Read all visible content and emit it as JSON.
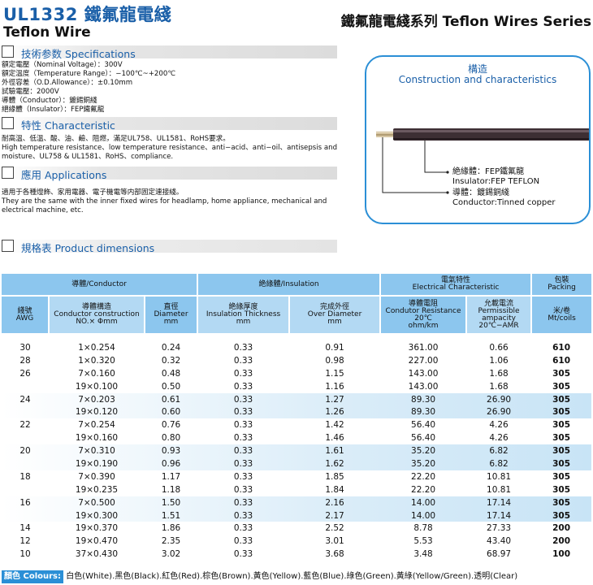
{
  "header": {
    "title_main": "UL1332 鐵氟龍電綫",
    "title_sub": "Teflon Wire",
    "title_right": "鐵氟龍電綫系列 Teflon Wires Series"
  },
  "sections": {
    "specifications": "技術参数 Specifications",
    "characteristic": "特性 Characteristic",
    "applications": "應用 Applications",
    "dimensions": "規格表 Product dimensions"
  },
  "specs": [
    "額定電壓（Nominal Voltage）：300V",
    "額定溫度（Temperature Range）：−100℃~+200℃",
    "外徑容差（O.D.Allowance）：±0.10mm",
    "試驗電壓：2000V",
    "導體（Conductor）：鍍錫銅綫",
    "絕緣體（Insulator）：FEP鐵氟龍"
  ],
  "characteristic_text": {
    "line1": "耐高溫、低溫、酸、油、鹼、阻燃，滿足UL758、UL1581、RoHS要求。",
    "line2": "High temperature resistance、low temperature resistance、anti−acid、anti−oil、antisepsis and moisture、UL758 & UL1581、RoHS、compliance."
  },
  "applications_text": {
    "line1": "適用于各種燈飾、家用電器、電子機電等内部固定連接綫。",
    "line2": "They are the same with the inner fixed wires for headlamp, home appliance, mechanical and electrical machine, etc."
  },
  "diagram": {
    "title_cn": "構造",
    "title_en": "Construction and characteristics",
    "insulator_cn": "絶緣體：FEP鐵氟龍",
    "insulator_en": "Insulator:FEP TEFLON",
    "conductor_cn": "導體：鍍錫銅綫",
    "conductor_en": "Conductor:Tinned copper"
  },
  "table": {
    "group_headers": {
      "conductor": "導體/Conductor",
      "insulation": "絶緣體/Insulation",
      "electrical_cn": "電氣特性",
      "electrical_en": "Electrical Characteristic",
      "packing_cn": "包裝",
      "packing_en": "Packing"
    },
    "col_headers": [
      {
        "cn": "綫號",
        "en": "AWG"
      },
      {
        "cn": "導體構造",
        "en": "Conductor construction",
        "unit": "NO.× Φmm"
      },
      {
        "cn": "直徑",
        "en": "Diameter",
        "unit": "mm"
      },
      {
        "cn": "絶緣厚度",
        "en": "Insulation Thickness",
        "unit": "mm"
      },
      {
        "cn": "完成外徑",
        "en": "Over Diameter",
        "unit": "mm"
      },
      {
        "cn": "導體電阻",
        "en": "Condutor Resistance 20℃",
        "unit": "ohm/km"
      },
      {
        "cn": "允載電流",
        "en": "Permissible ampacity",
        "unit": "20℃−AMR"
      },
      {
        "cn": "米/卷",
        "en": "Mt/coils"
      }
    ],
    "rows": [
      {
        "awg": "30",
        "construction": "1×0.254",
        "diameter": "0.24",
        "thickness": "0.33",
        "over_diameter": "0.91",
        "resistance": "361.00",
        "ampacity": "0.66",
        "packing": "610"
      },
      {
        "awg": "28",
        "construction": "1×0.320",
        "diameter": "0.32",
        "thickness": "0.33",
        "over_diameter": "0.98",
        "resistance": "227.00",
        "ampacity": "1.06",
        "packing": "610"
      },
      {
        "awg": "26",
        "construction": "7×0.160",
        "diameter": "0.48",
        "thickness": "0.33",
        "over_diameter": "1.15",
        "resistance": "143.00",
        "ampacity": "1.68",
        "packing": "305"
      },
      {
        "awg": "",
        "construction": "19×0.100",
        "diameter": "0.50",
        "thickness": "0.33",
        "over_diameter": "1.16",
        "resistance": "143.00",
        "ampacity": "1.68",
        "packing": "305"
      },
      {
        "awg": "24",
        "construction": "7×0.203",
        "diameter": "0.61",
        "thickness": "0.33",
        "over_diameter": "1.27",
        "resistance": "89.30",
        "ampacity": "26.90",
        "packing": "305"
      },
      {
        "awg": "",
        "construction": "19×0.120",
        "diameter": "0.60",
        "thickness": "0.33",
        "over_diameter": "1.26",
        "resistance": "89.30",
        "ampacity": "26.90",
        "packing": "305"
      },
      {
        "awg": "22",
        "construction": "7×0.254",
        "diameter": "0.76",
        "thickness": "0.33",
        "over_diameter": "1.42",
        "resistance": "56.40",
        "ampacity": "4.26",
        "packing": "305"
      },
      {
        "awg": "",
        "construction": "19×0.160",
        "diameter": "0.80",
        "thickness": "0.33",
        "over_diameter": "1.46",
        "resistance": "56.40",
        "ampacity": "4.26",
        "packing": "305"
      },
      {
        "awg": "20",
        "construction": "7×0.310",
        "diameter": "0.93",
        "thickness": "0.33",
        "over_diameter": "1.61",
        "resistance": "35.20",
        "ampacity": "6.82",
        "packing": "305"
      },
      {
        "awg": "",
        "construction": "19×0.190",
        "diameter": "0.96",
        "thickness": "0.33",
        "over_diameter": "1.62",
        "resistance": "35.20",
        "ampacity": "6.82",
        "packing": "305"
      },
      {
        "awg": "18",
        "construction": "7×0.390",
        "diameter": "1.17",
        "thickness": "0.33",
        "over_diameter": "1.85",
        "resistance": "22.20",
        "ampacity": "10.81",
        "packing": "305"
      },
      {
        "awg": "",
        "construction": "19×0.235",
        "diameter": "1.18",
        "thickness": "0.33",
        "over_diameter": "1.84",
        "resistance": "22.20",
        "ampacity": "10.81",
        "packing": "305"
      },
      {
        "awg": "16",
        "construction": "7×0.500",
        "diameter": "1.50",
        "thickness": "0.33",
        "over_diameter": "2.16",
        "resistance": "14.00",
        "ampacity": "17.14",
        "packing": "305"
      },
      {
        "awg": "",
        "construction": "19×0.300",
        "diameter": "1.51",
        "thickness": "0.33",
        "over_diameter": "2.17",
        "resistance": "14.00",
        "ampacity": "17.14",
        "packing": "305"
      },
      {
        "awg": "14",
        "construction": "19×0.370",
        "diameter": "1.86",
        "thickness": "0.33",
        "over_diameter": "2.52",
        "resistance": "8.78",
        "ampacity": "27.33",
        "packing": "200"
      },
      {
        "awg": "12",
        "construction": "19×0.470",
        "diameter": "2.35",
        "thickness": "0.33",
        "over_diameter": "3.01",
        "resistance": "5.53",
        "ampacity": "43.40",
        "packing": "200"
      },
      {
        "awg": "10",
        "construction": "37×0.430",
        "diameter": "3.02",
        "thickness": "0.33",
        "over_diameter": "3.68",
        "resistance": "3.48",
        "ampacity": "68.97",
        "packing": "100"
      }
    ]
  },
  "colours": {
    "label": "顏色 Colours:",
    "text": "白色(White).黑色(Black).紅色(Red).棕色(Brown).黃色(Yellow).藍色(Blue).綠色(Green).黃綠(Yellow/Green).透明(Clear)"
  },
  "theme": {
    "accent": "#1a5fa8",
    "table_header": "#8cc6ee",
    "frame": "#2b8fd6"
  }
}
